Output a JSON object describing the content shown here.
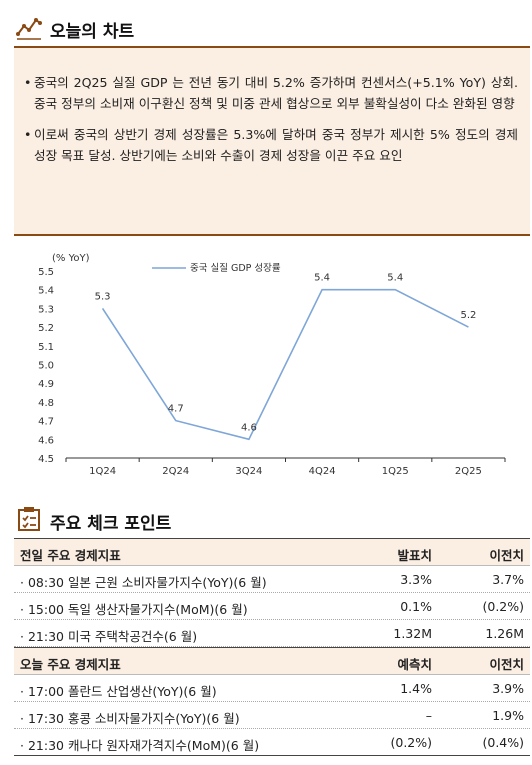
{
  "section1": {
    "title": "오늘의 차트",
    "icon": "chart-line-icon"
  },
  "summary": {
    "bullets": [
      "중국의 2Q25 실질 GDP 는 전년 동기 대비 5.2% 증가하며 컨센서스(+5.1% YoY) 상회. 중국 정부의 소비재 이구환신 정책 및 미중 관세 협상으로 외부 불확실성이 다소 완화된 영향",
      "이로써 중국의 상반기 경제 성장률은 5.3%에 달하며 중국 정부가 제시한 5% 정도의 경제 성장 목표 달성. 상반기에는 소비와 수출이 경제 성장을 이끈 주요 요인"
    ]
  },
  "chart_data": {
    "type": "line",
    "unit_label": "(% YoY)",
    "categories": [
      "1Q24",
      "2Q24",
      "3Q24",
      "4Q24",
      "1Q25",
      "2Q25"
    ],
    "series": [
      {
        "name": "중국 실질 GDP 성장률",
        "values": [
          5.3,
          4.7,
          4.6,
          5.4,
          5.4,
          5.2
        ]
      }
    ],
    "data_labels": [
      "5.3",
      "4.7",
      "4.6",
      "5.4",
      "5.4",
      "5.2"
    ],
    "ylim": [
      4.5,
      5.5
    ],
    "yticks": [
      "4.5",
      "4.6",
      "4.7",
      "4.8",
      "4.9",
      "5.0",
      "5.1",
      "5.2",
      "5.3",
      "5.4",
      "5.5"
    ],
    "legend_position": "top-center",
    "grid": false,
    "line_color": "#7ea6d8"
  },
  "section2": {
    "title": "주요 체크 포인트",
    "icon": "checklist-icon"
  },
  "yesterday": {
    "header": {
      "name": "전일 주요 경제지표",
      "col2": "발표치",
      "col3": "이전치"
    },
    "rows": [
      {
        "name": "· 08:30 일본 근원 소비자물가지수(YoY)(6 월)",
        "v1": "3.3%",
        "v2": "3.7%"
      },
      {
        "name": "· 15:00 독일 생산자물가지수(MoM)(6 월)",
        "v1": "0.1%",
        "v2": "(0.2%)"
      },
      {
        "name": "· 21:30 미국 주택착공건수(6 월)",
        "v1": "1.32M",
        "v2": "1.26M"
      }
    ]
  },
  "today": {
    "header": {
      "name": "오늘 주요 경제지표",
      "col2": "예측치",
      "col3": "이전치"
    },
    "rows": [
      {
        "name": "· 17:00 폴란드 산업생산(YoY)(6 월)",
        "v1": "1.4%",
        "v2": "3.9%"
      },
      {
        "name": "· 17:30 홍콩 소비자물가지수(YoY)(6 월)",
        "v1": "–",
        "v2": "1.9%"
      },
      {
        "name": "· 21:30 캐나다 원자재가격지수(MoM)(6 월)",
        "v1": "(0.2%)",
        "v2": "(0.4%)"
      }
    ]
  }
}
